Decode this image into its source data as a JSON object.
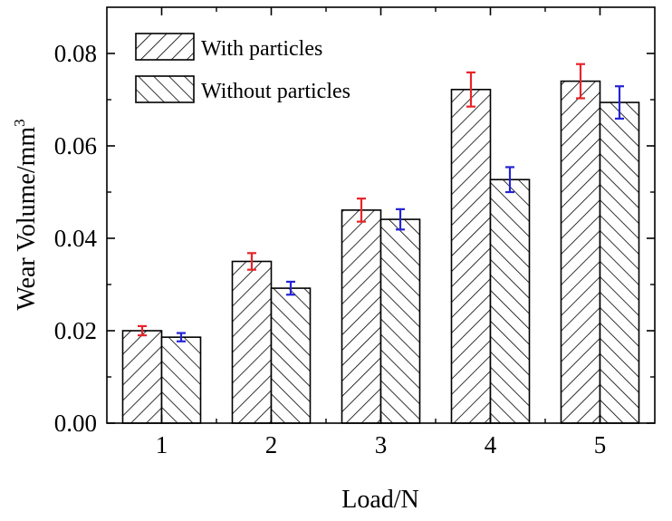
{
  "chart_data": {
    "type": "bar",
    "title": "",
    "xlabel": "Load/N",
    "ylabel": "Wear Volume/mm",
    "ylabel_superscript": "3",
    "categories": [
      "1",
      "2",
      "3",
      "4",
      "5"
    ],
    "ylim": [
      0,
      0.09
    ],
    "yticks": [
      "0.00",
      "0.02",
      "0.04",
      "0.06",
      "0.08"
    ],
    "legend_position": "top-left",
    "grid": false,
    "series": [
      {
        "name": "With particles",
        "values": [
          0.02,
          0.035,
          0.0461,
          0.0722,
          0.074
        ],
        "errors": [
          0.001,
          0.0018,
          0.0025,
          0.0037,
          0.0037
        ],
        "error_color": "#e8242a",
        "pattern": "hatch-forward"
      },
      {
        "name": "Without particles",
        "values": [
          0.0186,
          0.0292,
          0.0441,
          0.0527,
          0.0694
        ],
        "errors": [
          0.0009,
          0.0014,
          0.0022,
          0.0027,
          0.0035
        ],
        "error_color": "#2424d6",
        "pattern": "hatch-backward"
      }
    ]
  }
}
